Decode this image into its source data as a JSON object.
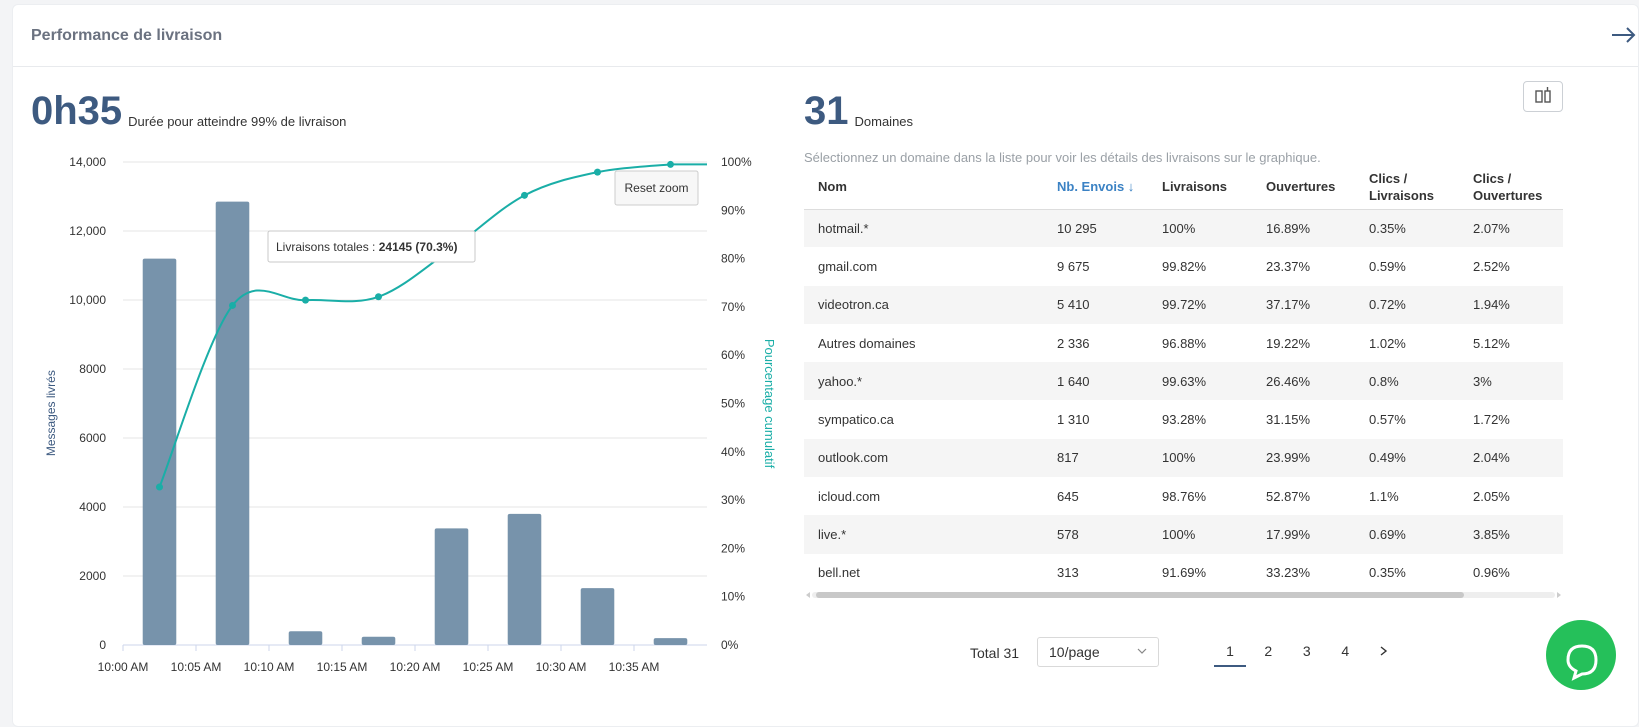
{
  "header": {
    "title": "Performance de livraison",
    "icon": "arrow-right-icon"
  },
  "kpi_left": {
    "value": "0h35",
    "label": "Durée pour atteindre 99% de livraison"
  },
  "kpi_right": {
    "value": "31",
    "label": "Domaines"
  },
  "hint": "Sélectionnez un domaine dans la liste pour voir les détails des livraisons sur le graphique.",
  "chart_controls": {
    "reset_zoom": "Reset zoom"
  },
  "tooltip": {
    "label": "Livraisons totales : ",
    "value": "24145 (70.3%)"
  },
  "chart_data": {
    "type": "bar+line",
    "categories": [
      "10:02",
      "10:07",
      "10:12",
      "10:17",
      "10:22",
      "10:27",
      "10:32",
      "10:37"
    ],
    "x_tick_labels": [
      "10:00 AM",
      "10:05 AM",
      "10:10 AM",
      "10:15 AM",
      "10:20 AM",
      "10:25 AM",
      "10:30 AM",
      "10:35 AM"
    ],
    "series": [
      {
        "name": "Messages livrés",
        "type": "bar",
        "axis": "left",
        "values": [
          11200,
          12850,
          400,
          240,
          3380,
          3800,
          1650,
          200
        ]
      },
      {
        "name": "Pourcentage cumulatif",
        "type": "line",
        "axis": "right",
        "values": [
          32.7,
          70.3,
          71.4,
          72.1,
          82.0,
          93.1,
          97.9,
          99.5
        ]
      }
    ],
    "y_left": {
      "label": "Messages livrés",
      "ticks": [
        "0",
        "2000",
        "4000",
        "6000",
        "8000",
        "10,000",
        "12,000",
        "14,000"
      ],
      "ylim": [
        0,
        14000
      ]
    },
    "y_right": {
      "label": "Pourcentage cumulatif",
      "ticks": [
        "0%",
        "10%",
        "20%",
        "30%",
        "40%",
        "50%",
        "60%",
        "70%",
        "80%",
        "90%",
        "100%"
      ],
      "ylim": [
        0,
        100
      ]
    },
    "colors": {
      "bar": "#7793ab",
      "line": "#1aaea7",
      "left_axis": "#3d5a80",
      "right_axis": "#1aaea7"
    }
  },
  "table": {
    "columns": [
      "Nom",
      "Nb. Envois ↓",
      "Livraisons",
      "Ouvertures",
      "Clics / Livraisons",
      "Clics / Ouvertures"
    ],
    "rows": [
      [
        "hotmail.*",
        "10 295",
        "100%",
        "16.89%",
        "0.35%",
        "2.07%"
      ],
      [
        "gmail.com",
        "9 675",
        "99.82%",
        "23.37%",
        "0.59%",
        "2.52%"
      ],
      [
        "videotron.ca",
        "5 410",
        "99.72%",
        "37.17%",
        "0.72%",
        "1.94%"
      ],
      [
        "Autres domaines",
        "2 336",
        "96.88%",
        "19.22%",
        "1.02%",
        "5.12%"
      ],
      [
        "yahoo.*",
        "1 640",
        "99.63%",
        "26.46%",
        "0.8%",
        "3%"
      ],
      [
        "sympatico.ca",
        "1 310",
        "93.28%",
        "31.15%",
        "0.57%",
        "1.72%"
      ],
      [
        "outlook.com",
        "817",
        "100%",
        "23.99%",
        "0.49%",
        "2.04%"
      ],
      [
        "icloud.com",
        "645",
        "98.76%",
        "52.87%",
        "1.1%",
        "2.05%"
      ],
      [
        "live.*",
        "578",
        "100%",
        "17.99%",
        "0.69%",
        "3.85%"
      ],
      [
        "bell.net",
        "313",
        "91.69%",
        "33.23%",
        "0.35%",
        "0.96%"
      ]
    ]
  },
  "pagination": {
    "total": "Total 31",
    "page_size": "10/page",
    "pages": [
      "1",
      "2",
      "3",
      "4"
    ],
    "current": "1"
  },
  "chat": {
    "icon": "chat-icon"
  }
}
